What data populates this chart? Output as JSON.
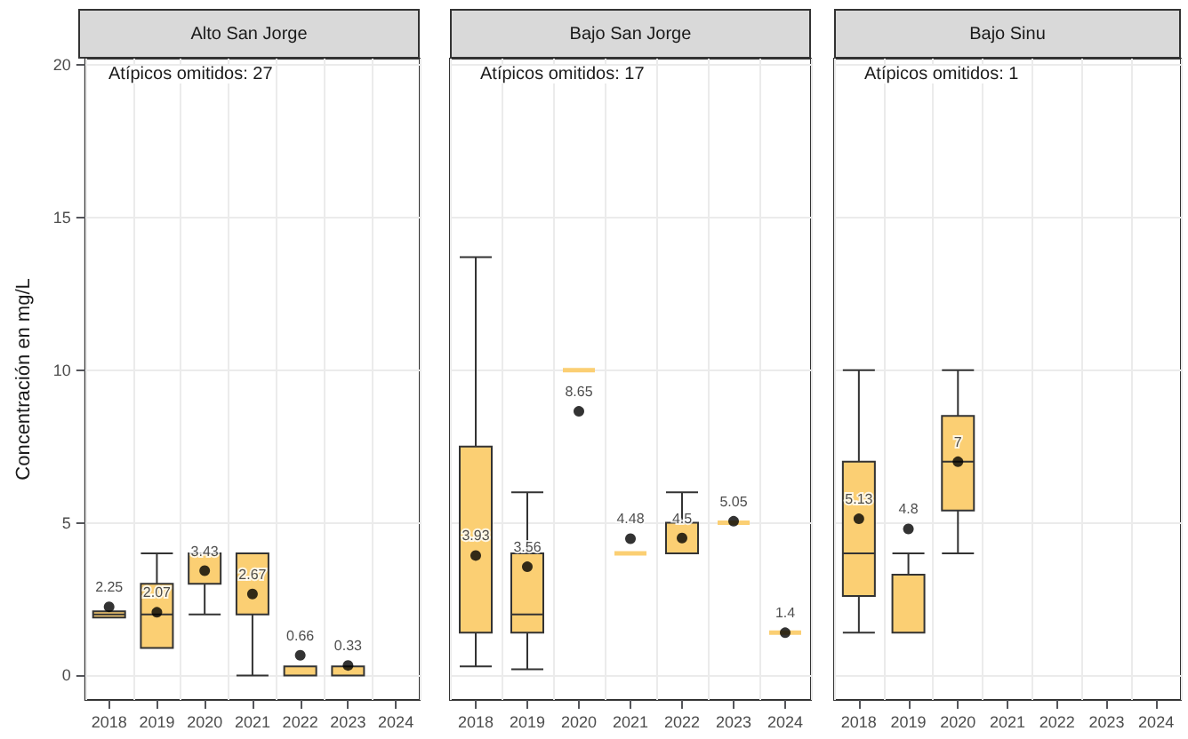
{
  "chart_data": [
    {
      "type": "box",
      "title": "Alto San Jorge",
      "ylabel": "Concentración en mg/L",
      "annotations": [
        "Atípicos omitidos: 27"
      ],
      "categories": [
        "2018",
        "2019",
        "2020",
        "2021",
        "2022",
        "2023",
        "2024"
      ],
      "ylim": [
        -0.8,
        20.2
      ],
      "yticks": [
        0,
        5,
        10,
        15,
        20
      ],
      "grid": true,
      "series": [
        {
          "color": "#fbcf73",
          "boxes": [
            {
              "low": 1.9,
              "q1": 1.9,
              "median": 2,
              "q3": 2.1,
              "high": 2.1
            },
            {
              "low": 0.9,
              "q1": 0.9,
              "median": 2,
              "q3": 3,
              "high": 4
            },
            {
              "low": 2,
              "q1": 3,
              "median": 4,
              "q3": 4,
              "high": 4
            },
            {
              "low": 0,
              "q1": 2,
              "median": 4,
              "q3": 4,
              "high": 4
            },
            {
              "low": 0,
              "q1": 0,
              "median": 0,
              "q3": 0.3,
              "high": 0.3
            },
            {
              "low": 0,
              "q1": 0,
              "median": 0,
              "q3": 0.3,
              "high": 0.3
            },
            null
          ]
        },
        {
          "type": "scatter",
          "color": "#000000",
          "marker": "circle",
          "values": [
            2.25,
            2.07,
            3.43,
            2.67,
            0.66,
            0.33,
            null
          ],
          "value_labels": [
            "2.25",
            "2.07",
            "3.43",
            "2.67",
            "0.66",
            "0.33",
            null
          ]
        }
      ]
    },
    {
      "type": "box",
      "title": "Bajo San Jorge",
      "annotations": [
        "Atípicos omitidos: 17"
      ],
      "categories": [
        "2018",
        "2019",
        "2020",
        "2021",
        "2022",
        "2023",
        "2024"
      ],
      "ylim": [
        -0.8,
        20.2
      ],
      "yticks": [
        0,
        5,
        10,
        15,
        20
      ],
      "grid": true,
      "tick_labels": "x",
      "series": [
        {
          "color": "#fbcf73",
          "boxes": [
            {
              "low": 0.3,
              "q1": 1.4,
              "median": 1.4,
              "q3": 7.5,
              "high": 13.7
            },
            {
              "low": 0.2,
              "q1": 1.4,
              "median": 2,
              "q3": 4,
              "high": 6
            },
            {
              "low": 10,
              "q1": 10,
              "median": 10,
              "q3": 10,
              "high": 10
            },
            {
              "low": 4,
              "q1": 4,
              "median": 4,
              "q3": 4,
              "high": 4
            },
            {
              "low": 4,
              "q1": 4,
              "median": 4,
              "q3": 5,
              "high": 6
            },
            {
              "low": 5,
              "q1": 5,
              "median": 5,
              "q3": 5,
              "high": 5
            },
            {
              "low": 1.4,
              "q1": 1.4,
              "median": 1.4,
              "q3": 1.4,
              "high": 1.4
            }
          ]
        },
        {
          "type": "scatter",
          "color": "#000000",
          "marker": "circle",
          "values": [
            3.93,
            3.56,
            8.65,
            4.48,
            4.5,
            5.05,
            1.4
          ],
          "value_labels": [
            "3.93",
            "3.56",
            "8.65",
            "4.48",
            "4.5",
            "5.05",
            "1.4"
          ]
        }
      ]
    },
    {
      "type": "box",
      "title": "Bajo Sinu",
      "annotations": [
        "Atípicos omitidos: 1"
      ],
      "categories": [
        "2018",
        "2019",
        "2020",
        "2021",
        "2022",
        "2023",
        "2024"
      ],
      "ylim": [
        -0.8,
        20.2
      ],
      "yticks": [
        0,
        5,
        10,
        15,
        20
      ],
      "grid": true,
      "tick_labels": "x",
      "series": [
        {
          "color": "#fbcf73",
          "boxes": [
            {
              "low": 1.4,
              "q1": 2.6,
              "median": 4,
              "q3": 7,
              "high": 10
            },
            {
              "low": 1.4,
              "q1": 1.4,
              "median": 1.4,
              "q3": 3.3,
              "high": 4
            },
            {
              "low": 4,
              "q1": 5.4,
              "median": 7,
              "q3": 8.5,
              "high": 10
            },
            null,
            null,
            null,
            null
          ]
        },
        {
          "type": "scatter",
          "color": "#000000",
          "marker": "circle",
          "values": [
            5.13,
            4.8,
            7,
            null,
            null,
            null,
            null
          ],
          "value_labels": [
            "5.13",
            "4.8",
            "7",
            null,
            null,
            null,
            null
          ]
        }
      ]
    }
  ]
}
